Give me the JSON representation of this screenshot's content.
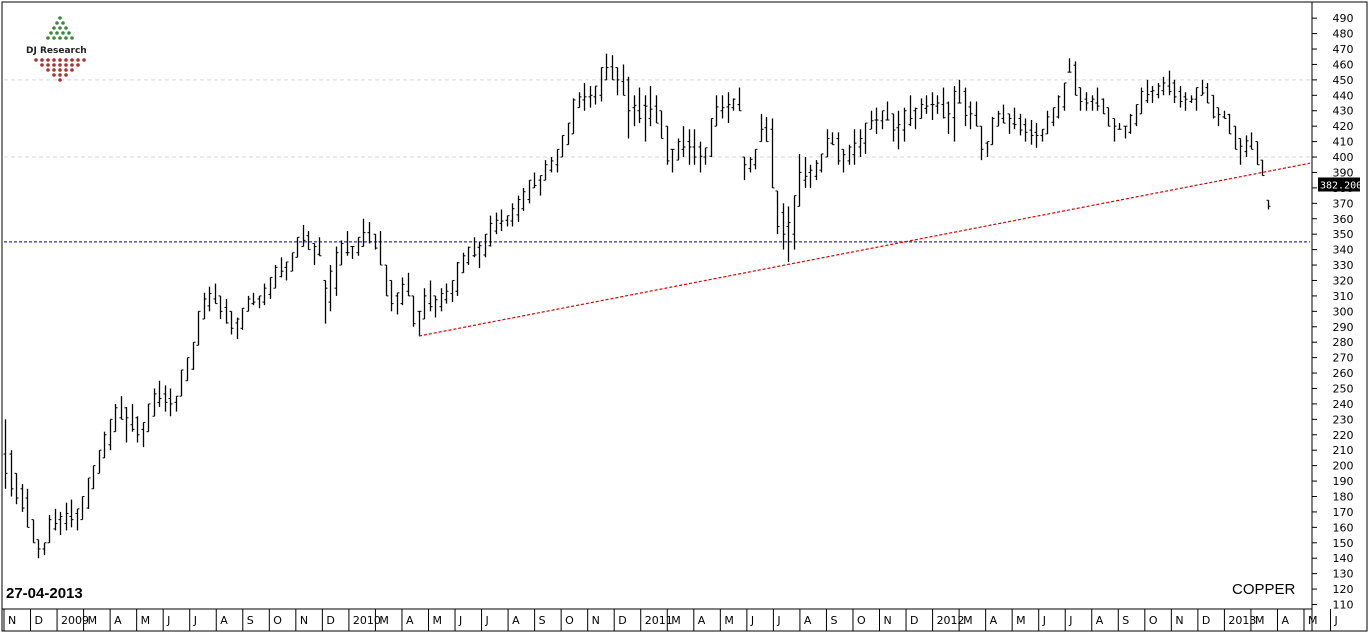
{
  "logo": {
    "text": "DJ Research"
  },
  "date_label": "27-04-2013",
  "symbol_label": "COPPER",
  "last_price_label": "382.200",
  "colors": {
    "bars": "#000000",
    "trendline": "#e00000",
    "support": "#000080",
    "last_bg": "#000000",
    "last_fg": "#ffffff",
    "logo_green": "#3a8a3a",
    "logo_red": "#b03030"
  },
  "chart_data": {
    "type": "ohlc",
    "title": "",
    "xlabel": "",
    "ylabel": "",
    "ylim": [
      105,
      495
    ],
    "y_ticks": [
      110,
      120,
      130,
      140,
      150,
      160,
      170,
      180,
      190,
      200,
      210,
      220,
      230,
      240,
      250,
      260,
      270,
      280,
      290,
      300,
      310,
      320,
      330,
      340,
      350,
      360,
      370,
      380,
      390,
      400,
      410,
      420,
      430,
      440,
      450,
      460,
      470,
      480,
      490
    ],
    "x_ticks": [
      "N",
      "D",
      "2009",
      "M",
      "A",
      "M",
      "J",
      "J",
      "A",
      "S",
      "O",
      "N",
      "D",
      "2010",
      "M",
      "A",
      "M",
      "J",
      "J",
      "A",
      "S",
      "O",
      "N",
      "D",
      "2011",
      "M",
      "A",
      "M",
      "J",
      "J",
      "A",
      "S",
      "O",
      "N",
      "D",
      "2012",
      "M",
      "A",
      "M",
      "J",
      "J",
      "A",
      "S",
      "O",
      "N",
      "D",
      "2013",
      "M",
      "A",
      "M",
      "J"
    ],
    "grid": {
      "horizontal": [
        400,
        450
      ],
      "style": "dashed"
    },
    "support_level": 345,
    "trendline": {
      "from": [
        "2010-06",
        284
      ],
      "to": [
        "2013-05",
        396
      ]
    },
    "last_price": 382.2,
    "series": [
      {
        "values": [
          [
            230,
            185
          ],
          [
            210,
            180
          ],
          [
            195,
            175
          ],
          [
            188,
            170
          ],
          [
            185,
            160
          ],
          [
            165,
            150
          ],
          [
            152,
            140
          ],
          [
            150,
            142
          ],
          [
            168,
            150
          ],
          [
            172,
            158
          ],
          [
            170,
            155
          ],
          [
            176,
            158
          ],
          [
            178,
            160
          ],
          [
            172,
            158
          ],
          [
            180,
            165
          ],
          [
            192,
            172
          ],
          [
            200,
            185
          ],
          [
            210,
            195
          ],
          [
            222,
            205
          ],
          [
            230,
            210
          ],
          [
            240,
            222
          ],
          [
            245,
            230
          ],
          [
            238,
            215
          ],
          [
            240,
            222
          ],
          [
            232,
            215
          ],
          [
            228,
            212
          ],
          [
            240,
            222
          ],
          [
            250,
            232
          ],
          [
            255,
            238
          ],
          [
            252,
            235
          ],
          [
            250,
            232
          ],
          [
            245,
            235
          ],
          [
            262,
            245
          ],
          [
            270,
            255
          ],
          [
            280,
            262
          ],
          [
            300,
            278
          ],
          [
            312,
            295
          ],
          [
            316,
            300
          ],
          [
            318,
            305
          ],
          [
            310,
            295
          ],
          [
            308,
            292
          ],
          [
            300,
            285
          ],
          [
            296,
            282
          ],
          [
            302,
            288
          ],
          [
            310,
            300
          ],
          [
            312,
            304
          ],
          [
            310,
            302
          ],
          [
            318,
            304
          ],
          [
            322,
            308
          ],
          [
            330,
            315
          ],
          [
            335,
            322
          ],
          [
            332,
            320
          ],
          [
            338,
            326
          ],
          [
            348,
            335
          ],
          [
            356,
            342
          ],
          [
            352,
            340
          ],
          [
            344,
            330
          ],
          [
            348,
            336
          ],
          [
            320,
            292
          ],
          [
            330,
            300
          ],
          [
            342,
            310
          ],
          [
            346,
            330
          ],
          [
            352,
            336
          ],
          [
            342,
            334
          ],
          [
            348,
            336
          ],
          [
            360,
            342
          ],
          [
            358,
            344
          ],
          [
            350,
            340
          ],
          [
            352,
            330
          ],
          [
            330,
            310
          ],
          [
            320,
            300
          ],
          [
            312,
            298
          ],
          [
            322,
            304
          ],
          [
            325,
            310
          ],
          [
            310,
            290
          ],
          [
            300,
            284
          ],
          [
            315,
            295
          ],
          [
            320,
            300
          ],
          [
            310,
            296
          ],
          [
            315,
            300
          ],
          [
            318,
            305
          ],
          [
            320,
            306
          ],
          [
            332,
            310
          ],
          [
            338,
            325
          ],
          [
            342,
            330
          ],
          [
            348,
            335
          ],
          [
            345,
            328
          ],
          [
            350,
            335
          ],
          [
            362,
            342
          ],
          [
            364,
            350
          ],
          [
            366,
            352
          ],
          [
            362,
            355
          ],
          [
            370,
            355
          ],
          [
            375,
            358
          ],
          [
            380,
            365
          ],
          [
            385,
            370
          ],
          [
            390,
            380
          ],
          [
            388,
            375
          ],
          [
            398,
            385
          ],
          [
            400,
            390
          ],
          [
            405,
            390
          ],
          [
            414,
            400
          ],
          [
            422,
            408
          ],
          [
            438,
            415
          ],
          [
            442,
            432
          ],
          [
            448,
            430
          ],
          [
            446,
            432
          ],
          [
            446,
            434
          ],
          [
            458,
            436
          ],
          [
            467,
            450
          ],
          [
            466,
            450
          ],
          [
            458,
            440
          ],
          [
            460,
            440
          ],
          [
            452,
            412
          ],
          [
            440,
            420
          ],
          [
            445,
            422
          ],
          [
            440,
            410
          ],
          [
            446,
            420
          ],
          [
            440,
            422
          ],
          [
            430,
            412
          ],
          [
            420,
            395
          ],
          [
            405,
            390
          ],
          [
            412,
            398
          ],
          [
            420,
            400
          ],
          [
            418,
            395
          ],
          [
            418,
            395
          ],
          [
            410,
            390
          ],
          [
            406,
            395
          ],
          [
            425,
            400
          ],
          [
            440,
            420
          ],
          [
            440,
            425
          ],
          [
            442,
            422
          ],
          [
            438,
            430
          ],
          [
            445,
            430
          ],
          [
            400,
            385
          ],
          [
            400,
            390
          ],
          [
            405,
            392
          ],
          [
            428,
            410
          ],
          [
            426,
            410
          ],
          [
            425,
            380
          ],
          [
            378,
            350
          ],
          [
            370,
            340
          ],
          [
            368,
            332
          ],
          [
            375,
            340
          ],
          [
            402,
            368
          ],
          [
            400,
            380
          ],
          [
            395,
            380
          ],
          [
            398,
            385
          ],
          [
            402,
            390
          ],
          [
            418,
            400
          ],
          [
            416,
            408
          ],
          [
            416,
            395
          ],
          [
            405,
            390
          ],
          [
            408,
            395
          ],
          [
            418,
            395
          ],
          [
            418,
            400
          ],
          [
            422,
            402
          ],
          [
            430,
            418
          ],
          [
            432,
            415
          ],
          [
            430,
            418
          ],
          [
            436,
            424
          ],
          [
            428,
            410
          ],
          [
            430,
            405
          ],
          [
            432,
            410
          ],
          [
            440,
            420
          ],
          [
            432,
            418
          ],
          [
            438,
            425
          ],
          [
            440,
            428
          ],
          [
            442,
            424
          ],
          [
            440,
            428
          ],
          [
            445,
            425
          ],
          [
            436,
            415
          ],
          [
            446,
            410
          ],
          [
            450,
            435
          ],
          [
            445,
            420
          ],
          [
            436,
            418
          ],
          [
            436,
            420
          ],
          [
            420,
            398
          ],
          [
            410,
            400
          ],
          [
            426,
            408
          ],
          [
            430,
            420
          ],
          [
            434,
            422
          ],
          [
            428,
            415
          ],
          [
            432,
            418
          ],
          [
            428,
            414
          ],
          [
            425,
            410
          ],
          [
            424,
            408
          ],
          [
            422,
            406
          ],
          [
            418,
            410
          ],
          [
            430,
            415
          ],
          [
            432,
            420
          ],
          [
            440,
            425
          ],
          [
            448,
            430
          ],
          [
            464,
            455
          ],
          [
            462,
            440
          ],
          [
            445,
            430
          ],
          [
            442,
            430
          ],
          [
            440,
            430
          ],
          [
            445,
            430
          ],
          [
            438,
            428
          ],
          [
            432,
            420
          ],
          [
            425,
            410
          ],
          [
            422,
            418
          ],
          [
            420,
            412
          ],
          [
            428,
            415
          ],
          [
            434,
            420
          ],
          [
            445,
            428
          ],
          [
            450,
            435
          ],
          [
            446,
            435
          ],
          [
            448,
            438
          ],
          [
            452,
            440
          ],
          [
            456,
            440
          ],
          [
            450,
            435
          ],
          [
            446,
            432
          ],
          [
            442,
            430
          ],
          [
            440,
            435
          ],
          [
            445,
            430
          ],
          [
            450,
            440
          ],
          [
            448,
            435
          ],
          [
            440,
            425
          ],
          [
            432,
            420
          ],
          [
            430,
            425
          ],
          [
            428,
            415
          ],
          [
            420,
            405
          ],
          [
            412,
            395
          ],
          [
            414,
            400
          ],
          [
            416,
            405
          ],
          [
            410,
            395
          ],
          [
            398,
            388
          ],
          [
            372,
            366
          ]
        ]
      }
    ]
  }
}
